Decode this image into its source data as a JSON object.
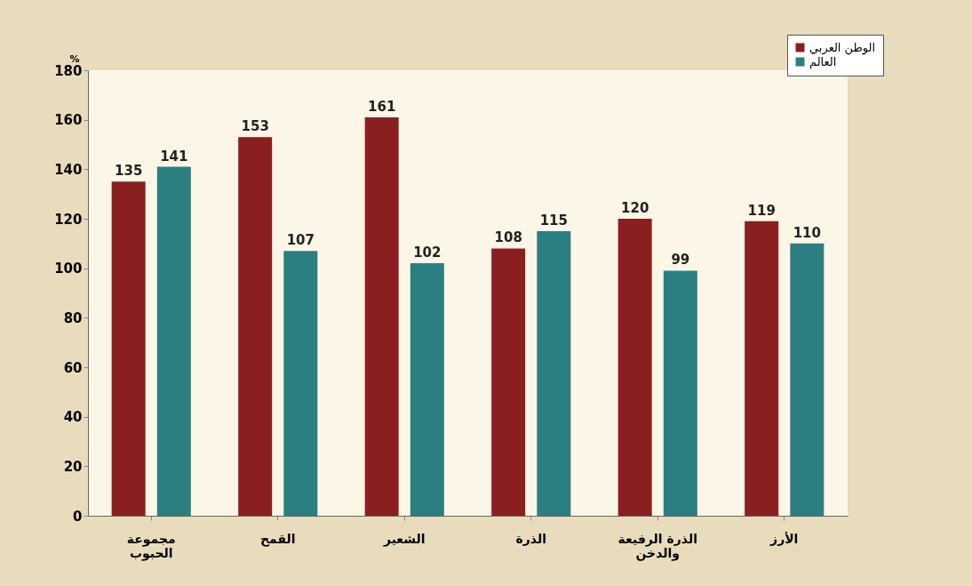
{
  "chart_data": {
    "type": "bar",
    "ylabel": "%",
    "categories": [
      "مجموعة الحبوب",
      "القمح",
      "الشعير",
      "الذرة",
      "الذرة الرفيعة والدخن",
      "الأرز"
    ],
    "series": [
      {
        "name": "الوطن العربي",
        "color": "#8b1f1f",
        "values": [
          135,
          153,
          161,
          108,
          120,
          119
        ]
      },
      {
        "name": "العالم",
        "color": "#2b7f80",
        "values": [
          141,
          107,
          102,
          115,
          99,
          110
        ]
      }
    ],
    "ylim": [
      0,
      180
    ],
    "yticks": [
      0,
      20,
      40,
      60,
      80,
      100,
      120,
      140,
      160,
      180
    ],
    "data_labels": true,
    "grid": false,
    "legend": "top right"
  }
}
